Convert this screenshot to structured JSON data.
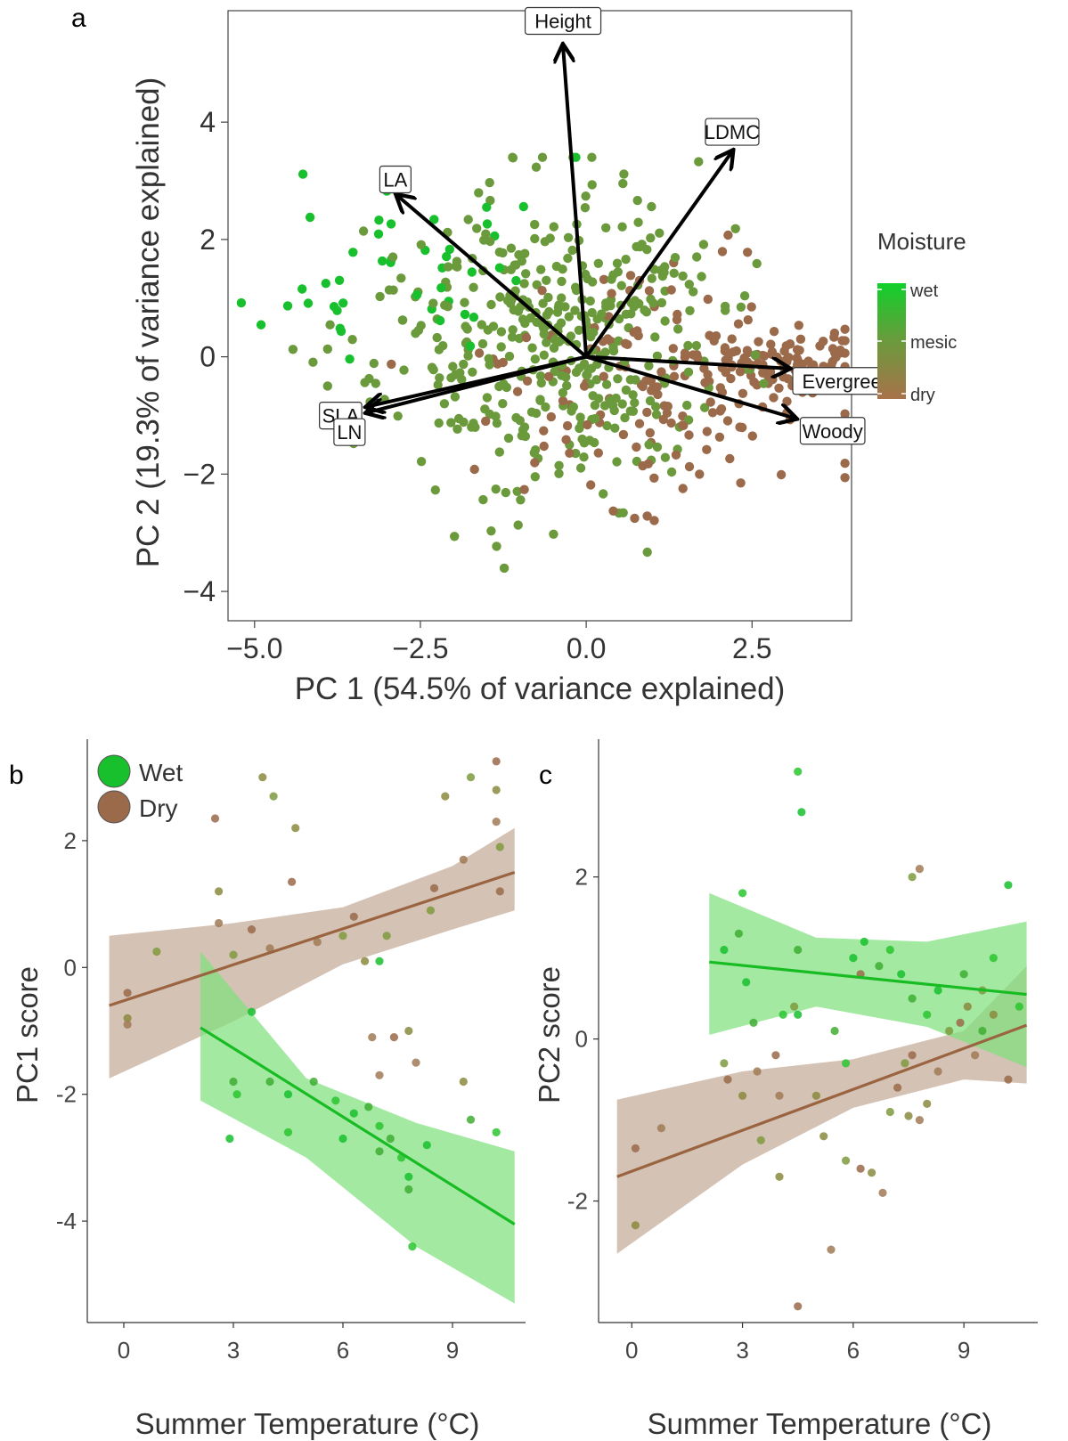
{
  "colors": {
    "wet": "#19c02e",
    "mesic": "#6b9a3c",
    "dry": "#9a6a4a",
    "wet_line": "#17bb22",
    "dry_line": "#9b6440",
    "wet_band": "#7fe07e",
    "dry_band": "#c9b3a3",
    "arrow": "#000000"
  },
  "chart_data": [
    {
      "panel": "a",
      "type": "scatter",
      "xlabel": "PC 1 (54.5% of variance explained)",
      "ylabel": "PC 2 (19.3% of variance explained)",
      "xlim": [
        -5.4,
        4.0
      ],
      "ylim": [
        -4.5,
        5.9
      ],
      "xticks": [
        "-5.0",
        "-2.5",
        "0.0",
        "2.5"
      ],
      "xtick_values": [
        -5.0,
        -2.5,
        0.0,
        2.5
      ],
      "yticks": [
        "-4",
        "-2",
        "0",
        "2",
        "4"
      ],
      "ytick_values": [
        -4,
        -2,
        0,
        2,
        4
      ],
      "legend": {
        "title": "Moisture",
        "labels": [
          "wet",
          "mesic",
          "dry"
        ],
        "placement": "right"
      },
      "loadings": [
        {
          "label": "Height",
          "x": -0.35,
          "y": 5.3
        },
        {
          "label": "LDMC",
          "x": 2.2,
          "y": 3.5
        },
        {
          "label": "LA",
          "x": -2.85,
          "y": 2.75
        },
        {
          "label": "Evergreen",
          "x": 3.05,
          "y": -0.2
        },
        {
          "label": "Woody",
          "x": 3.15,
          "y": -1.05
        },
        {
          "label": "SLA",
          "x": -3.3,
          "y": -0.85
        },
        {
          "label": "LN",
          "x": -3.3,
          "y": -0.95
        }
      ],
      "groups": [
        {
          "name": "wet",
          "n": 45,
          "xmean": -2.7,
          "ymean": 1.6,
          "xsd": 1.1,
          "ysd": 0.95,
          "seed": 11
        },
        {
          "name": "mesic",
          "n": 420,
          "xmean": -0.6,
          "ymean": 0.25,
          "xsd": 1.3,
          "ysd": 1.3,
          "seed": 23
        },
        {
          "name": "dry",
          "n": 250,
          "xmean": 1.25,
          "ymean": -0.55,
          "xsd": 1.35,
          "ysd": 1.05,
          "seed": 37
        }
      ]
    },
    {
      "panel": "b",
      "type": "scatter",
      "xlabel": "Summer Temperature (°C)",
      "ylabel": "PC1 score",
      "xlim": [
        -1.0,
        11.0
      ],
      "ylim": [
        -5.6,
        3.6
      ],
      "xticks": [
        "0",
        "3",
        "6",
        "9"
      ],
      "xtick_values": [
        0,
        3,
        6,
        9
      ],
      "yticks": [
        "2",
        "0",
        "-2",
        "-4"
      ],
      "ytick_values": [
        2,
        0,
        -2,
        -4
      ],
      "legend": {
        "labels": [
          "Wet",
          "Dry"
        ],
        "placement": "top-left"
      },
      "series": [
        {
          "name": "Wet",
          "fit": {
            "x": [
              2.1,
              10.7
            ],
            "y": [
              -0.95,
              -4.05
            ]
          },
          "band_upper": [
            [
              2.1,
              0.25
            ],
            [
              5.0,
              -1.75
            ],
            [
              8.0,
              -2.45
            ],
            [
              10.7,
              -2.9
            ]
          ],
          "band_lower": [
            [
              2.1,
              -2.1
            ],
            [
              5.0,
              -3.0
            ],
            [
              8.0,
              -4.4
            ],
            [
              10.7,
              -5.3
            ]
          ],
          "points": [
            [
              2.9,
              -2.7
            ],
            [
              3.0,
              -1.8
            ],
            [
              3.1,
              -2.0
            ],
            [
              3.5,
              -0.7
            ],
            [
              4.0,
              -1.8
            ],
            [
              4.5,
              -2.6
            ],
            [
              4.5,
              -2.0
            ],
            [
              5.2,
              -1.8
            ],
            [
              5.8,
              -2.1
            ],
            [
              6.3,
              -2.3
            ],
            [
              6.7,
              -2.2
            ],
            [
              7.0,
              -2.5
            ],
            [
              7.0,
              0.1
            ],
            [
              7.3,
              -2.7
            ],
            [
              7.6,
              -3.0
            ],
            [
              7.8,
              -3.3
            ],
            [
              7.8,
              -3.5
            ],
            [
              7.9,
              -4.4
            ],
            [
              8.3,
              -2.8
            ],
            [
              9.5,
              -2.4
            ],
            [
              10.2,
              -2.6
            ],
            [
              6.0,
              -2.7
            ],
            [
              7.0,
              -2.9
            ]
          ]
        },
        {
          "name": "Dry",
          "fit": {
            "x": [
              -0.4,
              10.7
            ],
            "y": [
              -0.6,
              1.5
            ]
          },
          "band_upper": [
            [
              -0.4,
              0.5
            ],
            [
              3.0,
              0.7
            ],
            [
              6.0,
              0.95
            ],
            [
              9.0,
              1.6
            ],
            [
              10.7,
              2.2
            ]
          ],
          "band_lower": [
            [
              -0.4,
              -1.75
            ],
            [
              3.0,
              -0.85
            ],
            [
              6.0,
              0.05
            ],
            [
              9.0,
              0.6
            ],
            [
              10.7,
              0.9
            ]
          ],
          "points": [
            [
              0.1,
              -0.4
            ],
            [
              0.1,
              -0.8
            ],
            [
              0.1,
              -0.9
            ],
            [
              0.9,
              0.25
            ],
            [
              2.5,
              2.35
            ],
            [
              2.6,
              1.2
            ],
            [
              2.6,
              0.7
            ],
            [
              3.0,
              0.2
            ],
            [
              3.5,
              0.6
            ],
            [
              3.8,
              3.0
            ],
            [
              4.0,
              0.3
            ],
            [
              4.1,
              2.7
            ],
            [
              4.6,
              1.35
            ],
            [
              4.7,
              2.2
            ],
            [
              5.3,
              0.4
            ],
            [
              6.0,
              0.5
            ],
            [
              6.3,
              0.8
            ],
            [
              6.6,
              0.1
            ],
            [
              6.8,
              -1.1
            ],
            [
              7.2,
              0.5
            ],
            [
              7.4,
              -1.1
            ],
            [
              7.8,
              -1.0
            ],
            [
              8.0,
              -1.5
            ],
            [
              8.4,
              0.9
            ],
            [
              8.5,
              1.25
            ],
            [
              8.8,
              2.7
            ],
            [
              9.3,
              1.7
            ],
            [
              9.5,
              3.0
            ],
            [
              10.2,
              3.25
            ],
            [
              10.2,
              2.8
            ],
            [
              10.2,
              2.3
            ],
            [
              10.3,
              1.9
            ],
            [
              10.3,
              1.2
            ],
            [
              9.3,
              -1.8
            ],
            [
              7.0,
              -1.7
            ]
          ]
        }
      ]
    },
    {
      "panel": "c",
      "type": "scatter",
      "xlabel": "Summer Temperature (°C)",
      "ylabel": "PC2 score",
      "xlim": [
        -0.9,
        11.0
      ],
      "ylim": [
        -3.5,
        3.7
      ],
      "xticks": [
        "0",
        "3",
        "6",
        "9"
      ],
      "xtick_values": [
        0,
        3,
        6,
        9
      ],
      "yticks": [
        "2",
        "0",
        "-2"
      ],
      "ytick_values": [
        2,
        0,
        -2
      ],
      "series": [
        {
          "name": "Wet",
          "fit": {
            "x": [
              2.1,
              10.7
            ],
            "y": [
              0.95,
              0.55
            ]
          },
          "band_upper": [
            [
              2.1,
              1.8
            ],
            [
              5.0,
              1.25
            ],
            [
              8.0,
              1.2
            ],
            [
              10.7,
              1.45
            ]
          ],
          "band_lower": [
            [
              2.1,
              0.05
            ],
            [
              5.0,
              0.4
            ],
            [
              8.0,
              0.15
            ],
            [
              10.7,
              -0.35
            ]
          ],
          "points": [
            [
              2.5,
              1.1
            ],
            [
              2.9,
              1.3
            ],
            [
              3.0,
              1.8
            ],
            [
              3.1,
              0.7
            ],
            [
              3.3,
              0.2
            ],
            [
              4.1,
              0.3
            ],
            [
              4.5,
              0.3
            ],
            [
              4.5,
              1.1
            ],
            [
              4.5,
              3.3
            ],
            [
              4.6,
              2.8
            ],
            [
              5.5,
              0.1
            ],
            [
              5.8,
              -0.3
            ],
            [
              6.3,
              1.2
            ],
            [
              6.7,
              0.9
            ],
            [
              7.0,
              1.1
            ],
            [
              7.3,
              0.8
            ],
            [
              7.6,
              0.5
            ],
            [
              8.0,
              0.3
            ],
            [
              8.3,
              0.6
            ],
            [
              9.0,
              0.8
            ],
            [
              9.8,
              1.0
            ],
            [
              10.2,
              1.9
            ],
            [
              9.5,
              0.1
            ],
            [
              10.5,
              0.4
            ],
            [
              6.0,
              1.0
            ]
          ]
        },
        {
          "name": "Dry",
          "fit": {
            "x": [
              -0.4,
              10.7
            ],
            "y": [
              -1.7,
              0.17
            ]
          },
          "band_upper": [
            [
              -0.4,
              -0.75
            ],
            [
              3.0,
              -0.4
            ],
            [
              6.0,
              -0.25
            ],
            [
              9.0,
              0.1
            ],
            [
              10.7,
              0.9
            ]
          ],
          "band_lower": [
            [
              -0.4,
              -2.65
            ],
            [
              3.0,
              -1.55
            ],
            [
              6.0,
              -0.85
            ],
            [
              9.0,
              -0.5
            ],
            [
              10.7,
              -0.55
            ]
          ],
          "points": [
            [
              0.1,
              -1.35
            ],
            [
              0.1,
              -2.3
            ],
            [
              0.8,
              -1.1
            ],
            [
              2.5,
              -0.3
            ],
            [
              2.6,
              -0.5
            ],
            [
              3.0,
              -0.7
            ],
            [
              3.4,
              -0.4
            ],
            [
              3.5,
              -1.25
            ],
            [
              3.9,
              -0.2
            ],
            [
              4.0,
              -1.7
            ],
            [
              4.0,
              -0.7
            ],
            [
              4.4,
              0.4
            ],
            [
              4.5,
              -3.3
            ],
            [
              5.0,
              -0.7
            ],
            [
              5.4,
              -2.6
            ],
            [
              5.8,
              -1.5
            ],
            [
              6.2,
              -1.6
            ],
            [
              6.5,
              -1.65
            ],
            [
              6.8,
              -1.9
            ],
            [
              7.0,
              -0.9
            ],
            [
              7.2,
              -0.6
            ],
            [
              7.5,
              -0.95
            ],
            [
              7.8,
              -1.0
            ],
            [
              7.4,
              -0.3
            ],
            [
              7.6,
              -0.2
            ],
            [
              8.0,
              -0.8
            ],
            [
              8.3,
              -0.4
            ],
            [
              8.6,
              0.1
            ],
            [
              8.9,
              0.2
            ],
            [
              9.1,
              0.4
            ],
            [
              9.3,
              -0.2
            ],
            [
              9.5,
              0.6
            ],
            [
              10.2,
              -0.5
            ],
            [
              9.8,
              0.3
            ],
            [
              7.8,
              2.1
            ],
            [
              7.6,
              2.0
            ],
            [
              6.2,
              0.8
            ],
            [
              5.2,
              -1.2
            ]
          ]
        }
      ]
    }
  ],
  "labels": {
    "panel_a": "a",
    "panel_b": "b",
    "panel_c": "c"
  }
}
